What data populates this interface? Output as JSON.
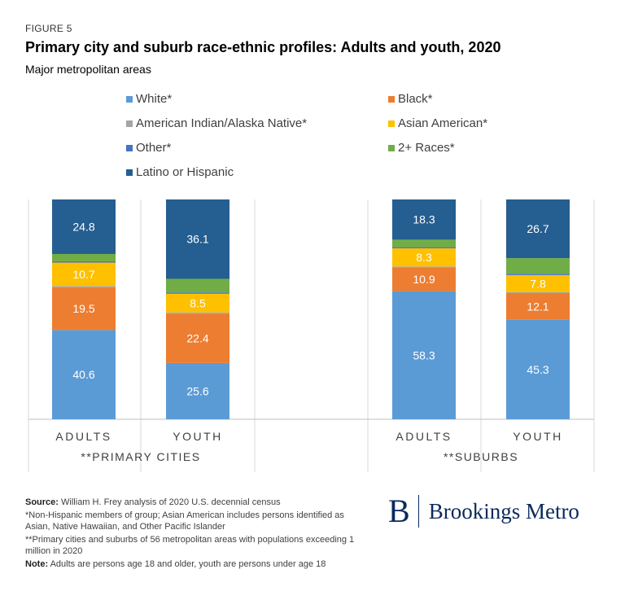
{
  "figure_label": "FIGURE 5",
  "title": "Primary city and suburb race-ethnic profiles: Adults and youth, 2020",
  "subtitle": "Major metropolitan areas",
  "notes": {
    "source_label": "Source:",
    "source_text": "William H. Frey analysis of 2020 U.S. decennial census",
    "note1": "*Non-Hispanic members of group; Asian American includes persons identified as Asian, Native Hawaiian, and Other Pacific Islander",
    "note2": "**Primary cities and suburbs of 56 metropolitan areas with populations exceeding 1 million in 2020",
    "note_label": "Note:",
    "note_text": "Adults are persons age 18 and older, youth are persons under age 18"
  },
  "brand": {
    "letter": "B",
    "name": "Brookings Metro"
  },
  "chart_data": {
    "type": "bar",
    "stacked": true,
    "groups": [
      "**PRIMARY CITIES",
      "**SUBURBS"
    ],
    "categories": [
      "ADULTS",
      "YOUTH",
      "ADULTS",
      "YOUTH"
    ],
    "category_groups": [
      0,
      0,
      1,
      1
    ],
    "ylim": [
      0,
      100
    ],
    "legend_position": "top",
    "series": [
      {
        "name": "White*",
        "color": "#5b9bd5",
        "values": [
          40.6,
          25.6,
          58.3,
          45.3
        ],
        "show_labels": true
      },
      {
        "name": "Black*",
        "color": "#ed7d31",
        "values": [
          19.5,
          22.4,
          10.9,
          12.1
        ],
        "show_labels": true
      },
      {
        "name": "American Indian/Alaska Native*",
        "color": "#a5a5a5",
        "values": [
          0.5,
          0.6,
          0.3,
          0.4
        ],
        "show_labels": false
      },
      {
        "name": "Asian American*",
        "color": "#ffc000",
        "values": [
          10.7,
          8.5,
          8.3,
          7.8
        ],
        "show_labels": true
      },
      {
        "name": "Other*",
        "color": "#4472c4",
        "values": [
          0.6,
          0.6,
          0.5,
          0.6
        ],
        "show_labels": false
      },
      {
        "name": "2+ Races*",
        "color": "#70ad47",
        "values": [
          3.3,
          6.2,
          3.4,
          7.1
        ],
        "show_labels": false
      },
      {
        "name": "Latino or Hispanic",
        "color": "#255e91",
        "values": [
          24.8,
          36.1,
          18.3,
          26.7
        ],
        "show_labels": true
      }
    ]
  }
}
